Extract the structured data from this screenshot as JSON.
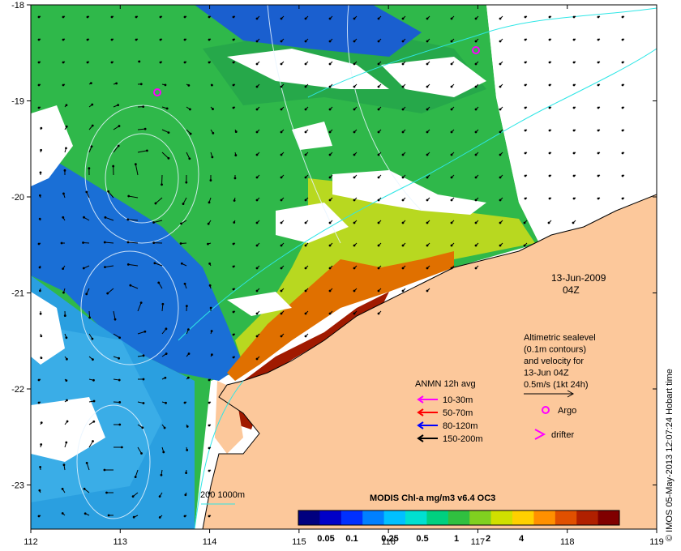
{
  "map": {
    "lon_ticks": [
      "112",
      "113",
      "114",
      "115",
      "116",
      "117",
      "118",
      "119"
    ],
    "lat_ticks": [
      "-18",
      "-19",
      "-20",
      "-21",
      "-22",
      "-23"
    ],
    "date_label": "13-Jun-2009",
    "time_label": "04Z",
    "altimetry_note": [
      "Altimetric sealevel",
      "(0.1m contours)",
      "and velocity for",
      "13-Jun 04Z",
      "0.5m/s (1kt 24h)"
    ],
    "anmn_title": "ANMN 12h avg",
    "anmn_entries": [
      {
        "label": "10-30m",
        "color": "#ff00ff"
      },
      {
        "label": "50-70m",
        "color": "#ff0000"
      },
      {
        "label": "80-120m",
        "color": "#0000ff"
      },
      {
        "label": "150-200m",
        "color": "#000000"
      }
    ],
    "argo_label": "Argo",
    "drifter_label": "drifter",
    "depth_label": "200  1000m",
    "credit": "© IMOS 05-May-2013 12:07:24 Hobart time"
  },
  "colorbar": {
    "title": "MODIS Chl-a mg/m3 v6.4 OC3",
    "tick_labels": [
      "0.05",
      "0.1",
      "0.25",
      "0.5",
      "1",
      "2",
      "4"
    ],
    "colors": [
      "#00007f",
      "#0000c8",
      "#0030ff",
      "#0080ff",
      "#00c0ff",
      "#00e0d0",
      "#00d080",
      "#30c040",
      "#80d020",
      "#d0e000",
      "#ffd000",
      "#ff9000",
      "#e05000",
      "#b02000",
      "#800000"
    ]
  }
}
